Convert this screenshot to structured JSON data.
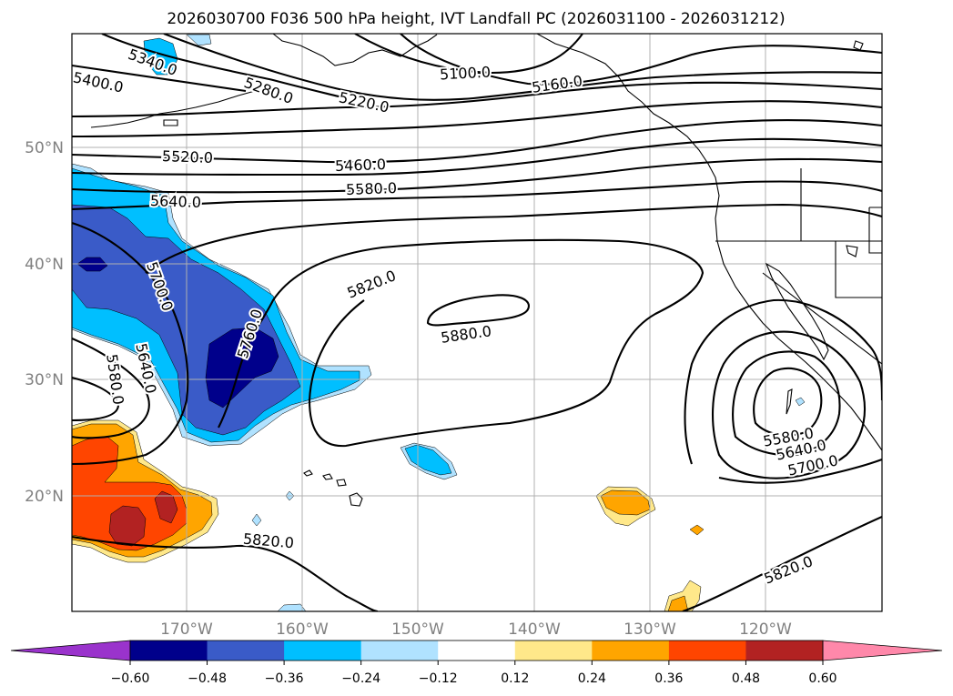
{
  "title": "2026030700 F036 500 hPa height, IVT Landfall PC (2026031100 - 2026031212)",
  "lat_ticks": [
    "50°N",
    "40°N",
    "30°N",
    "20°N"
  ],
  "lon_ticks": [
    "170°W",
    "160°W",
    "150°W",
    "140°W",
    "130°W",
    "120°W"
  ],
  "contour_labels": {
    "c5340": "5340.0",
    "c5400": "5400.0",
    "c5280": "5280.0",
    "c5220": "5220.0",
    "c5100": "5100.0",
    "c5160": "5160.0",
    "c5520": "5520.0",
    "c5460": "5460.0",
    "c5580n": "5580.0",
    "c5640n": "5640.0",
    "c5700w": "5700.0",
    "c5760": "5760.0",
    "c5820c": "5820.0",
    "c5880": "5880.0",
    "c5640w": "5640.0",
    "c5580w": "5580.0",
    "c5820s": "5820.0",
    "c5580e": "5580.0",
    "c5640e": "5640.0",
    "c5700e": "5700.0",
    "c5820e": "5820.0"
  },
  "colorbar": {
    "ticks": [
      "−0.60",
      "−0.48",
      "−0.36",
      "−0.24",
      "−0.12",
      "0.12",
      "0.24",
      "0.36",
      "0.48",
      "0.60"
    ],
    "colors": [
      "#9a33cc",
      "#00008b",
      "#3a5bc8",
      "#00bfff",
      "#b0e2ff",
      "#ffffff",
      "#ffe88a",
      "#ffa500",
      "#ff4500",
      "#b22222",
      "#ff88aa"
    ]
  },
  "fill_colors": {
    "neg1": "#b0e2ff",
    "neg2": "#00bfff",
    "neg3": "#3a5bc8",
    "neg4": "#00008b",
    "pos1": "#ffe88a",
    "pos2": "#ffa500",
    "pos3": "#ff4500",
    "pos4": "#b22222"
  },
  "contour_values": [
    5100,
    5160,
    5220,
    5280,
    5340,
    5400,
    5460,
    5520,
    5580,
    5640,
    5700,
    5760,
    5820,
    5880
  ]
}
